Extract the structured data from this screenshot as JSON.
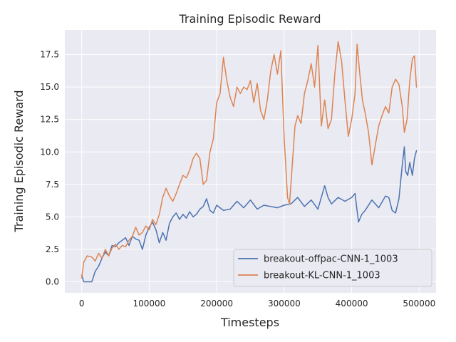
{
  "chart_data": {
    "type": "line",
    "title": "Training Episodic Reward",
    "xlabel": "Timesteps",
    "ylabel": "Training Episodic Reward",
    "xlim": [
      -25000,
      525000
    ],
    "ylim": [
      -0.85,
      19.4
    ],
    "xticks": [
      0,
      100000,
      200000,
      300000,
      400000,
      500000
    ],
    "xtick_labels": [
      "0",
      "100000",
      "200000",
      "300000",
      "400000",
      "500000"
    ],
    "yticks": [
      0.0,
      2.5,
      5.0,
      7.5,
      10.0,
      12.5,
      15.0,
      17.5
    ],
    "ytick_labels": [
      "0.0",
      "2.5",
      "5.0",
      "7.5",
      "10.0",
      "12.5",
      "15.0",
      "17.5"
    ],
    "grid": true,
    "legend_position": "bottom-right",
    "series": [
      {
        "name": "breakout-offpac-CNN-1_1003",
        "color": "#4c72b0",
        "x": [
          0,
          3000,
          8000,
          15000,
          20000,
          25000,
          30000,
          35000,
          40000,
          45000,
          50000,
          55000,
          60000,
          65000,
          70000,
          75000,
          80000,
          85000,
          90000,
          95000,
          100000,
          105000,
          110000,
          115000,
          120000,
          125000,
          130000,
          135000,
          140000,
          145000,
          150000,
          155000,
          160000,
          165000,
          170000,
          175000,
          180000,
          185000,
          190000,
          195000,
          200000,
          210000,
          220000,
          230000,
          240000,
          250000,
          260000,
          270000,
          280000,
          290000,
          300000,
          310000,
          320000,
          330000,
          340000,
          350000,
          360000,
          365000,
          370000,
          380000,
          390000,
          400000,
          405000,
          410000,
          415000,
          420000,
          430000,
          440000,
          450000,
          455000,
          460000,
          465000,
          470000,
          475000,
          478000,
          480000,
          483000,
          486000,
          490000,
          493000,
          496000
        ],
        "y": [
          0.5,
          0.0,
          0.0,
          0.0,
          0.8,
          1.2,
          1.8,
          2.3,
          2.0,
          2.8,
          2.7,
          3.0,
          3.2,
          3.4,
          2.8,
          3.5,
          3.3,
          3.2,
          2.5,
          3.6,
          4.2,
          4.6,
          4.0,
          3.0,
          3.8,
          3.2,
          4.5,
          5.0,
          5.3,
          4.8,
          5.2,
          4.9,
          5.4,
          5.0,
          5.2,
          5.6,
          5.8,
          6.4,
          5.5,
          5.3,
          5.9,
          5.5,
          5.6,
          6.2,
          5.7,
          6.3,
          5.6,
          5.9,
          5.8,
          5.7,
          5.9,
          6.0,
          6.5,
          5.8,
          6.3,
          5.6,
          7.4,
          6.5,
          6.0,
          6.5,
          6.2,
          6.5,
          6.8,
          4.6,
          5.2,
          5.5,
          6.3,
          5.7,
          6.6,
          6.5,
          5.5,
          5.3,
          6.4,
          9.0,
          10.4,
          8.5,
          8.2,
          9.2,
          8.2,
          9.5,
          10.1
        ]
      },
      {
        "name": "breakout-KL-CNN-1_1003",
        "color": "#dd8452",
        "x": [
          0,
          3000,
          8000,
          15000,
          20000,
          25000,
          30000,
          35000,
          40000,
          45000,
          50000,
          55000,
          60000,
          65000,
          70000,
          75000,
          80000,
          85000,
          90000,
          95000,
          100000,
          105000,
          110000,
          115000,
          120000,
          125000,
          130000,
          135000,
          140000,
          145000,
          150000,
          155000,
          160000,
          165000,
          170000,
          175000,
          180000,
          185000,
          190000,
          195000,
          200000,
          205000,
          210000,
          215000,
          220000,
          225000,
          230000,
          235000,
          240000,
          245000,
          250000,
          255000,
          260000,
          265000,
          270000,
          275000,
          280000,
          285000,
          290000,
          295000,
          300000,
          305000,
          308000,
          312000,
          316000,
          320000,
          325000,
          330000,
          335000,
          340000,
          345000,
          350000,
          355000,
          360000,
          365000,
          370000,
          375000,
          380000,
          385000,
          390000,
          395000,
          400000,
          405000,
          408000,
          412000,
          416000,
          420000,
          425000,
          430000,
          435000,
          440000,
          445000,
          450000,
          455000,
          460000,
          465000,
          470000,
          475000,
          478000,
          482000,
          486000,
          490000,
          493000,
          496000
        ],
        "y": [
          0.3,
          1.5,
          2.0,
          1.9,
          1.6,
          2.2,
          1.8,
          2.5,
          2.0,
          2.6,
          2.9,
          2.5,
          2.8,
          2.7,
          3.2,
          3.5,
          4.2,
          3.6,
          3.8,
          4.3,
          4.0,
          4.8,
          4.4,
          5.2,
          6.5,
          7.2,
          6.6,
          6.2,
          6.8,
          7.5,
          8.2,
          8.0,
          8.6,
          9.5,
          9.9,
          9.5,
          7.5,
          7.8,
          10.0,
          11.0,
          13.8,
          14.5,
          17.3,
          15.5,
          14.2,
          13.5,
          15.0,
          14.5,
          15.0,
          14.8,
          15.5,
          13.8,
          15.3,
          13.2,
          12.5,
          14.0,
          16.2,
          17.5,
          16.0,
          17.8,
          11.0,
          6.5,
          6.0,
          9.0,
          12.0,
          12.8,
          12.2,
          14.5,
          15.5,
          16.8,
          15.0,
          18.2,
          12.0,
          14.0,
          11.8,
          12.5,
          16.0,
          18.5,
          17.0,
          14.0,
          11.2,
          12.5,
          14.5,
          18.3,
          16.0,
          14.0,
          13.0,
          11.5,
          9.0,
          10.5,
          12.0,
          12.8,
          13.5,
          13.0,
          15.0,
          15.6,
          15.2,
          13.5,
          11.5,
          12.5,
          15.5,
          17.2,
          17.4,
          15.0
        ]
      }
    ]
  }
}
